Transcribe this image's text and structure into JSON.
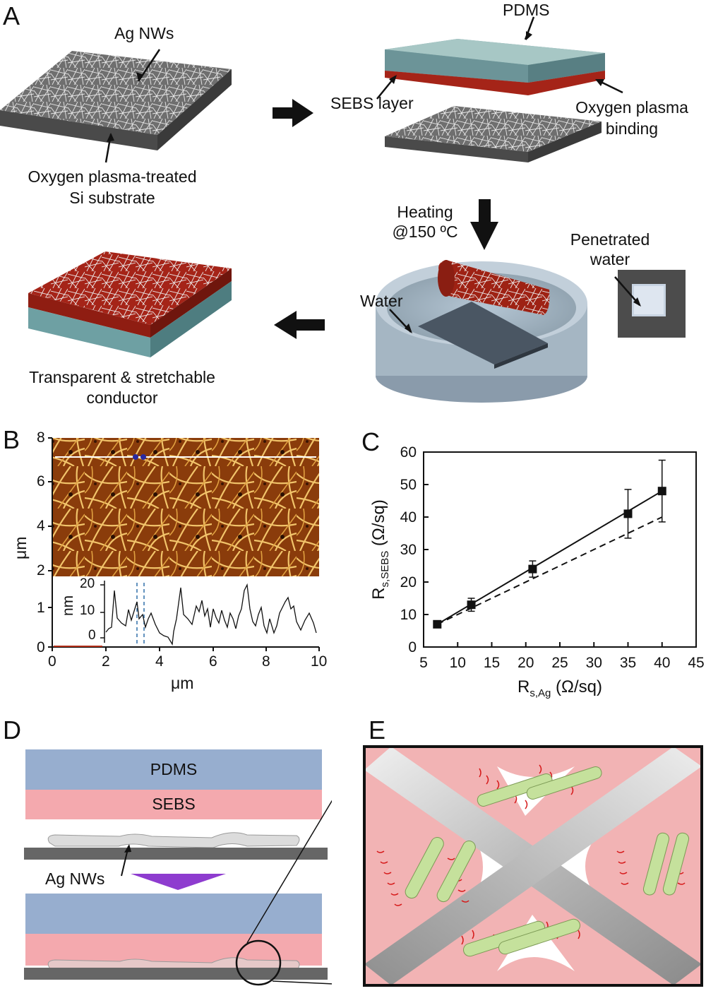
{
  "panels": {
    "a": "A",
    "b": "B",
    "c": "C",
    "d": "D",
    "e": "E"
  },
  "panel_a": {
    "ag_nws": "Ag NWs",
    "substrate_line1": "Oxygen plasma-treated",
    "substrate_line2": "Si substrate",
    "pdms": "PDMS",
    "sebs_layer": "SEBS layer",
    "binding_line1": "Oxygen plasma",
    "binding_line2": "binding",
    "heating_line1": "Heating",
    "heating_line2": "@150 ºC",
    "penetrated_line1": "Penetrated",
    "penetrated_line2": "water",
    "water": "Water",
    "conductor_line1": "Transparent & stretchable",
    "conductor_line2": "conductor"
  },
  "panel_b": {
    "y_ticks": [
      "0",
      "1",
      "2",
      "4",
      "6",
      "8"
    ],
    "x_ticks": [
      "0",
      "2",
      "4",
      "6",
      "8",
      "10"
    ],
    "inset_ticks": [
      "0",
      "10",
      "20"
    ],
    "ylabel": "μm",
    "inset_label": "nm",
    "xlabel": "μm"
  },
  "panel_d": {
    "pdms": "PDMS",
    "sebs": "SEBS",
    "ag_nws": "Ag NWs"
  },
  "colors": {
    "pdms_blue": "#97aecf",
    "sebs_pink": "#f4a9ae",
    "substrate_gray": "#666666",
    "arrow_purple": "#8e3ccf",
    "afm_brown": "#8a3c0b",
    "e_background": "#f2b3b4",
    "rod_green": "#c5e19c"
  },
  "chart_data": {
    "type": "scatter",
    "title": "",
    "xlabel": "R s,Ag (Ω/sq)",
    "ylabel": "R s,SEBS (Ω/sq)",
    "xlim": [
      5,
      45
    ],
    "ylim": [
      0,
      60
    ],
    "x_ticks": [
      5,
      10,
      15,
      20,
      25,
      30,
      35,
      40,
      45
    ],
    "y_ticks": [
      0,
      10,
      20,
      30,
      40,
      50,
      60
    ],
    "grid": false,
    "series": [
      {
        "style": "markers with error bars, solid fit line",
        "x": [
          7,
          12,
          21,
          35,
          40
        ],
        "y": [
          7,
          13,
          24,
          41,
          48
        ],
        "error": [
          0.6,
          2,
          2.5,
          7.5,
          9.5
        ]
      }
    ],
    "reference_line": {
      "style": "dashed",
      "x": [
        7,
        40
      ],
      "y": [
        7,
        40
      ]
    }
  }
}
